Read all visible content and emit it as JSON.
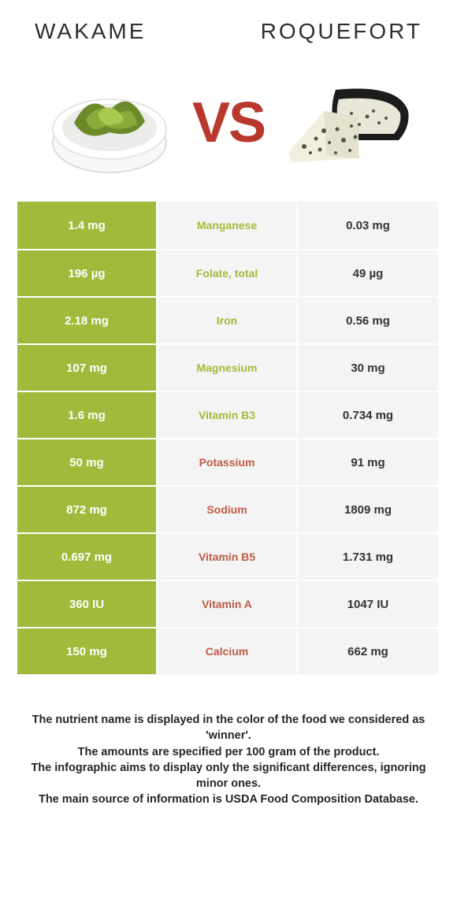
{
  "header": {
    "left_title": "WAKAME",
    "right_title": "ROQUEFORT"
  },
  "vs_label": "VS",
  "colors": {
    "left_food": "#a0bb3b",
    "right_food": "#bd5a45",
    "vs_text": "#b9382d",
    "row_bg": "#f4f4f4",
    "left_col_bg": "#a0bb3b",
    "left_col_text": "#ffffff",
    "value_text": "#333333"
  },
  "rows": [
    {
      "left": "1.4 mg",
      "name": "Manganese",
      "right": "0.03 mg",
      "winner": "left"
    },
    {
      "left": "196 µg",
      "name": "Folate, total",
      "right": "49 µg",
      "winner": "left"
    },
    {
      "left": "2.18 mg",
      "name": "Iron",
      "right": "0.56 mg",
      "winner": "left"
    },
    {
      "left": "107 mg",
      "name": "Magnesium",
      "right": "30 mg",
      "winner": "left"
    },
    {
      "left": "1.6 mg",
      "name": "Vitamin B3",
      "right": "0.734 mg",
      "winner": "left"
    },
    {
      "left": "50 mg",
      "name": "Potassium",
      "right": "91 mg",
      "winner": "right"
    },
    {
      "left": "872 mg",
      "name": "Sodium",
      "right": "1809 mg",
      "winner": "right"
    },
    {
      "left": "0.697 mg",
      "name": "Vitamin B5",
      "right": "1.731 mg",
      "winner": "right"
    },
    {
      "left": "360 IU",
      "name": "Vitamin A",
      "right": "1047 IU",
      "winner": "right"
    },
    {
      "left": "150 mg",
      "name": "Calcium",
      "right": "662 mg",
      "winner": "right"
    }
  ],
  "footer_lines": [
    "The nutrient name is displayed in the color of the food we considered as 'winner'.",
    "The amounts are specified per 100 gram of the product.",
    "The infographic aims to display only the significant differences, ignoring minor ones.",
    "The main source of information is USDA Food Composition Database."
  ]
}
